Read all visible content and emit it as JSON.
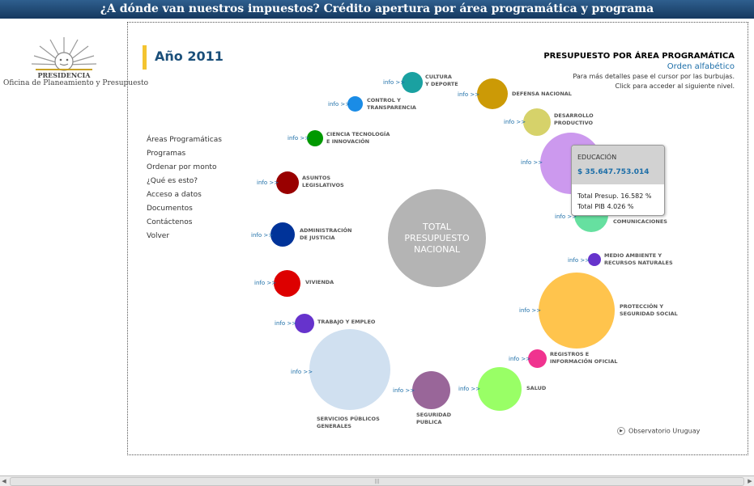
{
  "header": {
    "title": "¿A dónde van nuestros impuestos? Crédito apertura por área programática y programa"
  },
  "logo": {
    "line1": "PRESIDENCIA",
    "line2": "Oficina de Planeamiento y Presupuesto"
  },
  "year": "Año 2011",
  "right_panel": {
    "title": "PRESUPUESTO POR ÁREA PROGRAMÁTICA",
    "order": "Orden alfabético",
    "hint1": "Para más detalles pase el cursor por las burbujas.",
    "hint2": "Click para acceder al siguiente nivel."
  },
  "menu": [
    "Áreas Programáticas",
    "Programas",
    "Ordenar por monto",
    "¿Qué es esto?",
    "Acceso a datos",
    "Documentos",
    "Contáctenos",
    "Volver"
  ],
  "center": {
    "line1": "TOTAL",
    "line2": "PRESUPUESTO",
    "line3": "NACIONAL"
  },
  "info_label": "info >>",
  "areas": [
    {
      "l1": "CULTURA",
      "l2": "Y DEPORTE",
      "color": "#1aa1a1"
    },
    {
      "l1": "DEFENSA NACIONAL",
      "l2": "",
      "color": "#cc9a06"
    },
    {
      "l1": "DESARROLLO",
      "l2": "PRODUCTIVO",
      "color": "#d6d26a"
    },
    {
      "l1": "EDUCACIÓN",
      "l2": "",
      "color": "#cc99ee"
    },
    {
      "l1": "COMUNICACIONES",
      "l2": "",
      "color": "#66e0a0"
    },
    {
      "l1": "MEDIO AMBIENTE Y",
      "l2": "RECURSOS NATURALES",
      "color": "#6633cc"
    },
    {
      "l1": "PROTECCIÓN Y",
      "l2": "SEGURIDAD SOCIAL",
      "color": "#ffc44d"
    },
    {
      "l1": "REGISTROS E",
      "l2": "INFORMACIÓN OFICIAL",
      "color": "#f0338f"
    },
    {
      "l1": "SALUD",
      "l2": "",
      "color": "#99ff66"
    },
    {
      "l1": "SEGURIDAD",
      "l2": "PUBLICA",
      "color": "#996699"
    },
    {
      "l1": "SERVICIOS PÚBLICOS",
      "l2": "GENERALES",
      "color": "#d0e0f0"
    },
    {
      "l1": "TRABAJO Y EMPLEO",
      "l2": "",
      "color": "#6633cc"
    },
    {
      "l1": "VIVIENDA",
      "l2": "",
      "color": "#dd0000"
    },
    {
      "l1": "ADMINISTRACIÓN",
      "l2": "DE JUSTICIA",
      "color": "#003399"
    },
    {
      "l1": "ASUNTOS",
      "l2": "LEGISLATIVOS",
      "color": "#990000"
    },
    {
      "l1": "CIENCIA TECNOLOGÍA",
      "l2": "E INNOVACIÓN",
      "color": "#009900"
    },
    {
      "l1": "CONTROL Y",
      "l2": "TRANSPARENCIA",
      "color": "#1a8ce6"
    }
  ],
  "tooltip": {
    "name": "EDUCACIÓN",
    "value": "$ 35.647.753.014",
    "presup": "Total Presup. 16.582 %",
    "pib": "Total PIB 4.026 %"
  },
  "footer_link": "Observatorio Uruguay",
  "scrollbar": {
    "grip": "|||"
  }
}
